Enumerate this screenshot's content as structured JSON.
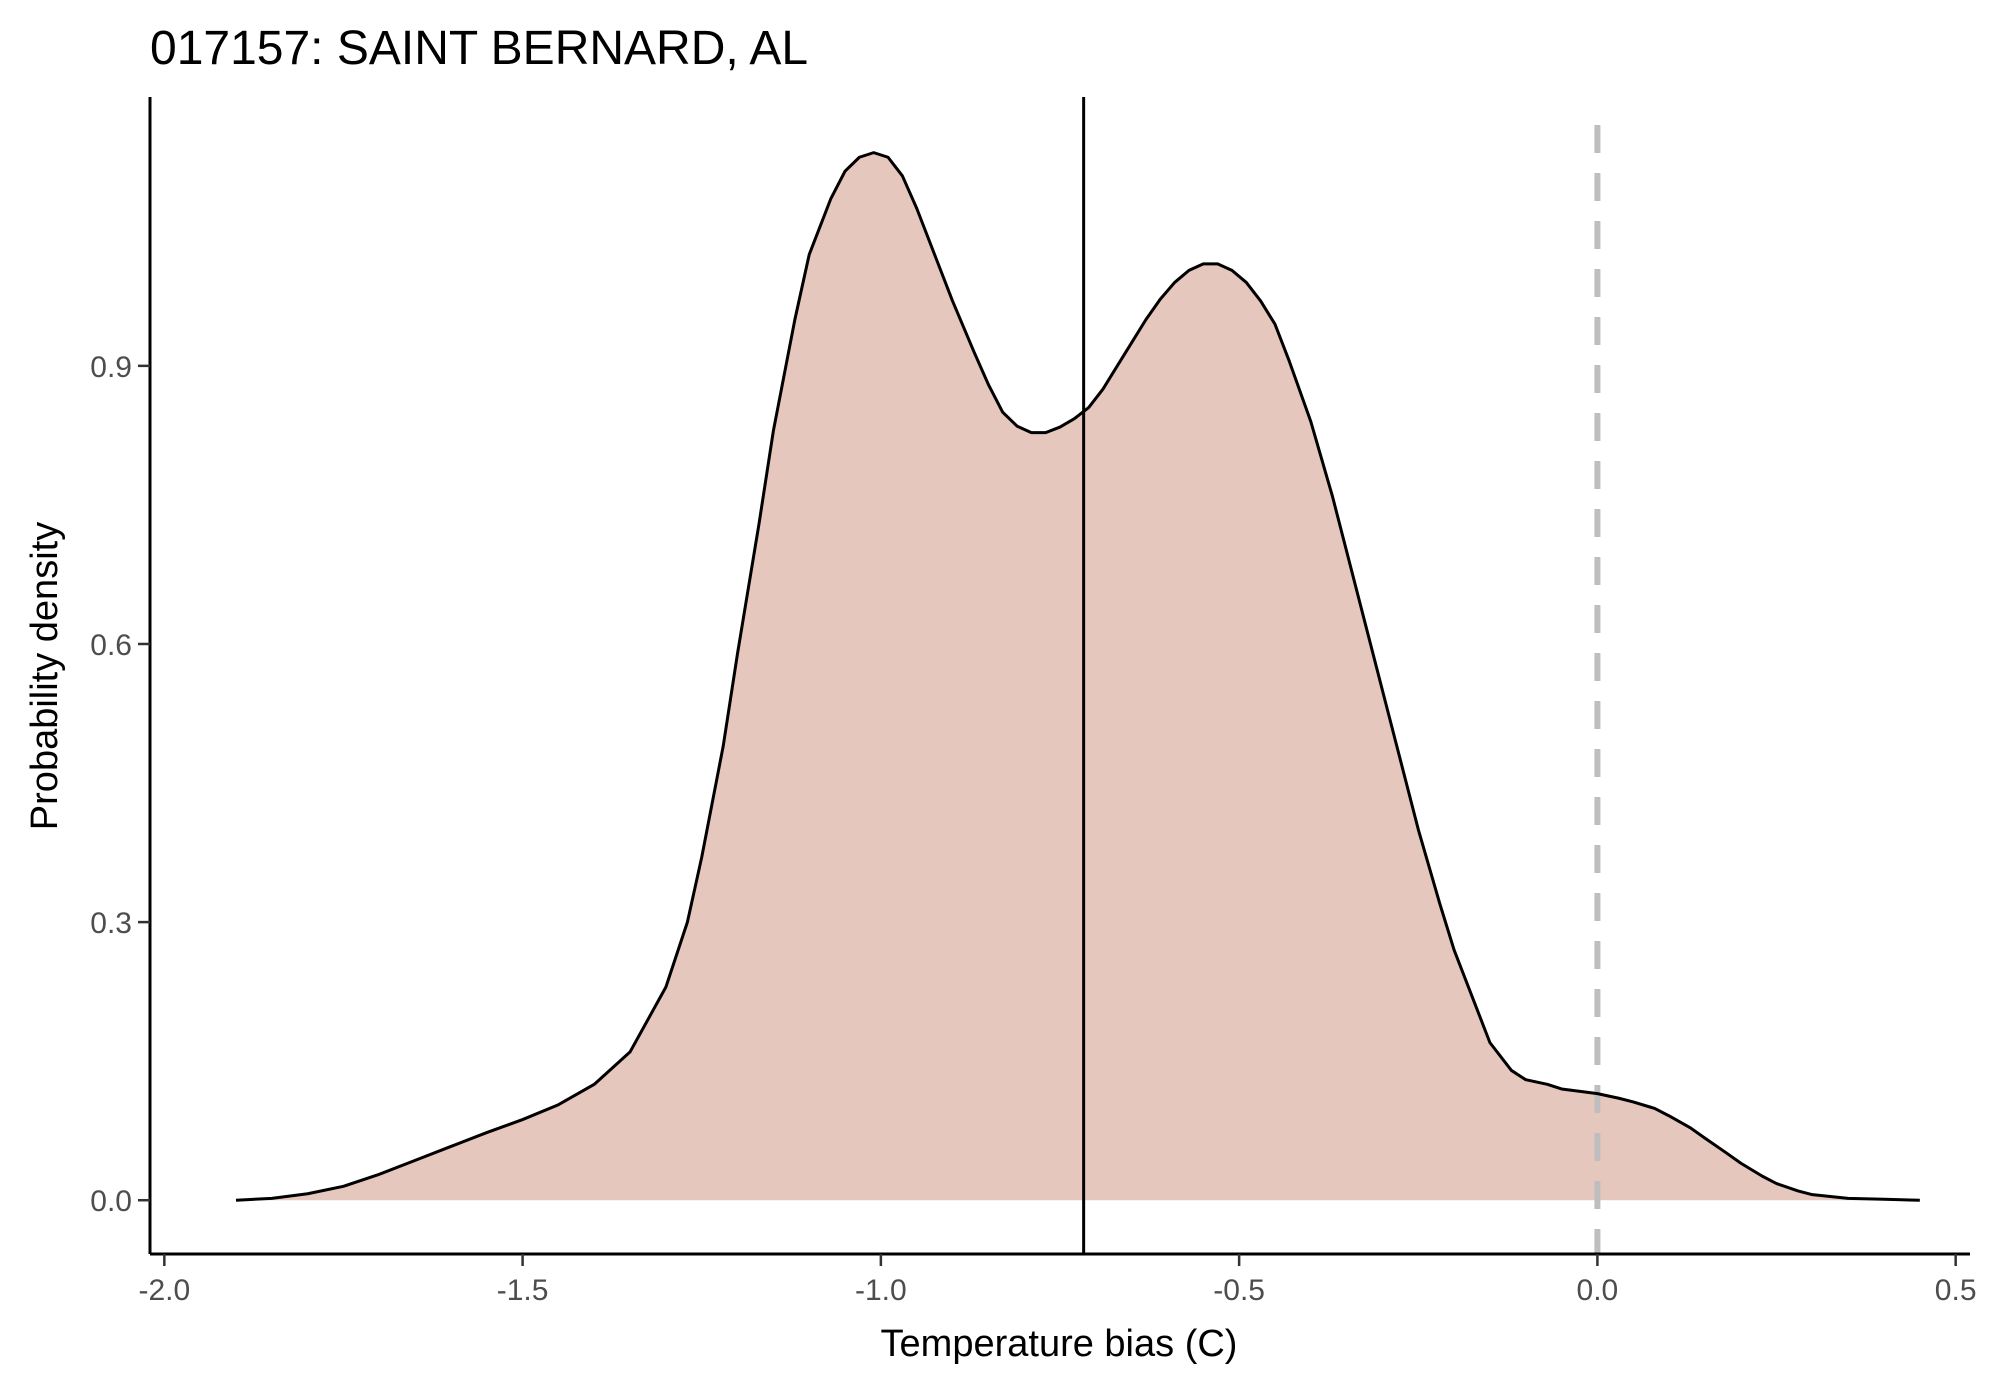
{
  "chart_data": {
    "type": "area",
    "title": "017157: SAINT BERNARD, AL",
    "xlabel": "Temperature bias (C)",
    "ylabel": "Probability density",
    "xlim": [
      -2.02,
      0.52
    ],
    "ylim": [
      -0.058,
      1.19
    ],
    "x_ticks": [
      -2.0,
      -1.5,
      -1.0,
      -0.5,
      0.0,
      0.5
    ],
    "x_tick_labels": [
      "-2.0",
      "-1.5",
      "-1.0",
      "-0.5",
      "0.0",
      "0.5"
    ],
    "y_ticks": [
      0.0,
      0.3,
      0.6,
      0.9
    ],
    "y_tick_labels": [
      "0.0",
      "0.3",
      "0.6",
      "0.9"
    ],
    "grid": false,
    "fill_color": "#e6c7be",
    "line_color": "#000000",
    "mean_line": {
      "x": -0.717,
      "color": "#000000"
    },
    "reference_line": {
      "x": 0.0,
      "color": "#bebebe",
      "style": "dashed"
    },
    "density": {
      "x": [
        -1.9,
        -1.85,
        -1.8,
        -1.75,
        -1.7,
        -1.65,
        -1.6,
        -1.55,
        -1.5,
        -1.45,
        -1.4,
        -1.35,
        -1.3,
        -1.27,
        -1.25,
        -1.22,
        -1.2,
        -1.17,
        -1.15,
        -1.12,
        -1.1,
        -1.07,
        -1.05,
        -1.03,
        -1.01,
        -0.99,
        -0.97,
        -0.95,
        -0.92,
        -0.9,
        -0.87,
        -0.85,
        -0.83,
        -0.81,
        -0.79,
        -0.77,
        -0.75,
        -0.73,
        -0.71,
        -0.69,
        -0.67,
        -0.65,
        -0.63,
        -0.61,
        -0.59,
        -0.57,
        -0.55,
        -0.53,
        -0.51,
        -0.49,
        -0.47,
        -0.45,
        -0.43,
        -0.4,
        -0.37,
        -0.35,
        -0.32,
        -0.3,
        -0.27,
        -0.25,
        -0.22,
        -0.2,
        -0.17,
        -0.15,
        -0.12,
        -0.1,
        -0.07,
        -0.05,
        -0.02,
        0.0,
        0.03,
        0.05,
        0.08,
        0.1,
        0.13,
        0.15,
        0.18,
        0.2,
        0.23,
        0.25,
        0.28,
        0.3,
        0.35,
        0.4,
        0.45
      ],
      "y": [
        0.0,
        0.002,
        0.007,
        0.015,
        0.028,
        0.043,
        0.058,
        0.073,
        0.087,
        0.103,
        0.125,
        0.16,
        0.23,
        0.3,
        0.37,
        0.49,
        0.59,
        0.73,
        0.83,
        0.95,
        1.02,
        1.08,
        1.11,
        1.125,
        1.13,
        1.125,
        1.105,
        1.07,
        1.01,
        0.97,
        0.915,
        0.88,
        0.85,
        0.835,
        0.828,
        0.828,
        0.834,
        0.843,
        0.855,
        0.875,
        0.9,
        0.925,
        0.95,
        0.972,
        0.99,
        1.003,
        1.01,
        1.01,
        1.003,
        0.99,
        0.97,
        0.945,
        0.905,
        0.84,
        0.76,
        0.7,
        0.61,
        0.55,
        0.46,
        0.4,
        0.32,
        0.27,
        0.21,
        0.17,
        0.14,
        0.13,
        0.125,
        0.12,
        0.117,
        0.115,
        0.11,
        0.106,
        0.099,
        0.091,
        0.078,
        0.067,
        0.051,
        0.04,
        0.026,
        0.018,
        0.01,
        0.006,
        0.002,
        0.001,
        0.0
      ]
    }
  }
}
